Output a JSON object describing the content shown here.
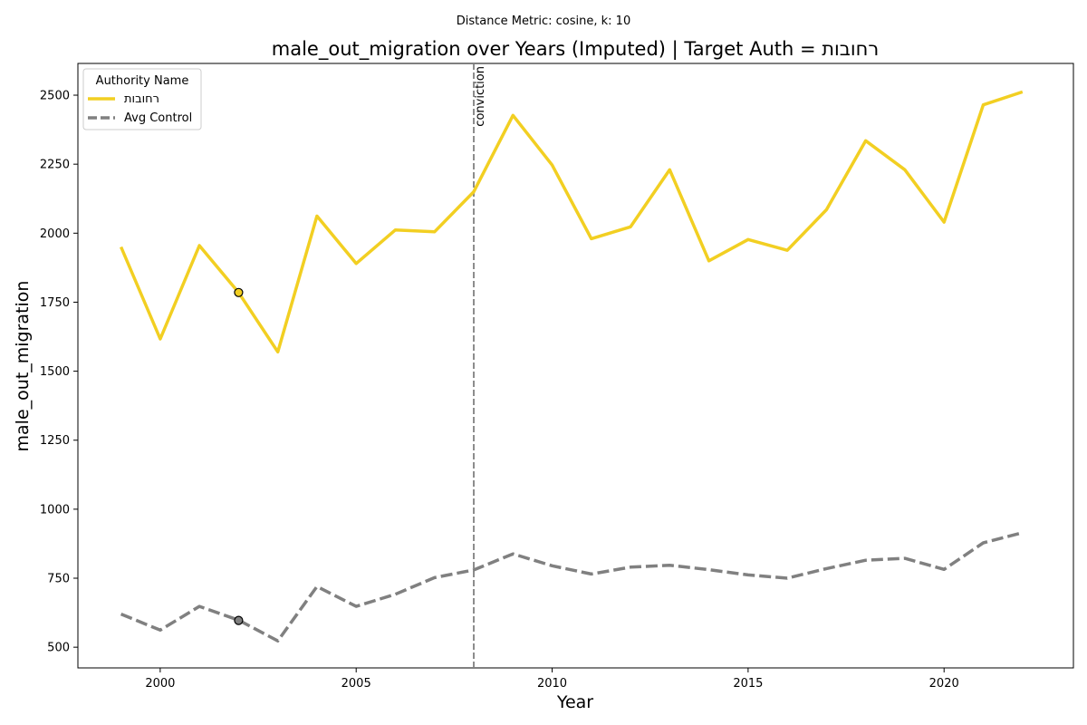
{
  "chart_data": {
    "type": "line",
    "suptitle": "Distance Metric: cosine, k: 10",
    "title": "male_out_migration over Years (Imputed) | Target Auth = רחובות",
    "xlabel": "Year",
    "ylabel": "male_out_migration",
    "xlim": [
      1997.9,
      2023.3
    ],
    "ylim": [
      425,
      2615
    ],
    "xticks": [
      2000,
      2005,
      2010,
      2015,
      2020
    ],
    "yticks": [
      500,
      750,
      1000,
      1250,
      1500,
      1750,
      2000,
      2250,
      2500
    ],
    "grid": false,
    "legend": {
      "title": "Authority Name",
      "placement": "top-left"
    },
    "x": [
      1999,
      2000,
      2001,
      2002,
      2003,
      2004,
      2005,
      2006,
      2007,
      2008,
      2009,
      2010,
      2011,
      2012,
      2013,
      2014,
      2015,
      2016,
      2017,
      2018,
      2019,
      2020,
      2021,
      2022
    ],
    "series": [
      {
        "name": "רחובות",
        "color": "#f2cf22",
        "style": "solid",
        "values": [
          1950,
          1617,
          1955,
          1785,
          1570,
          2062,
          1890,
          2012,
          2005,
          2150,
          2427,
          2247,
          1980,
          2023,
          2230,
          1900,
          1977,
          1938,
          2085,
          2335,
          2230,
          2040,
          2465,
          2512
        ]
      },
      {
        "name": "Avg Control",
        "color": "#808080",
        "style": "dashed",
        "values": [
          620,
          562,
          648,
          598,
          523,
          720,
          648,
          692,
          752,
          780,
          838,
          795,
          765,
          790,
          797,
          781,
          762,
          750,
          785,
          815,
          822,
          782,
          878,
          915
        ]
      }
    ],
    "markers": [
      {
        "x": 2002,
        "y": 1785,
        "color": "#f2cf22"
      },
      {
        "x": 2002,
        "y": 597,
        "color": "#808080"
      }
    ],
    "vline": {
      "x": 2008,
      "label": "conviction",
      "color": "#808080"
    }
  }
}
